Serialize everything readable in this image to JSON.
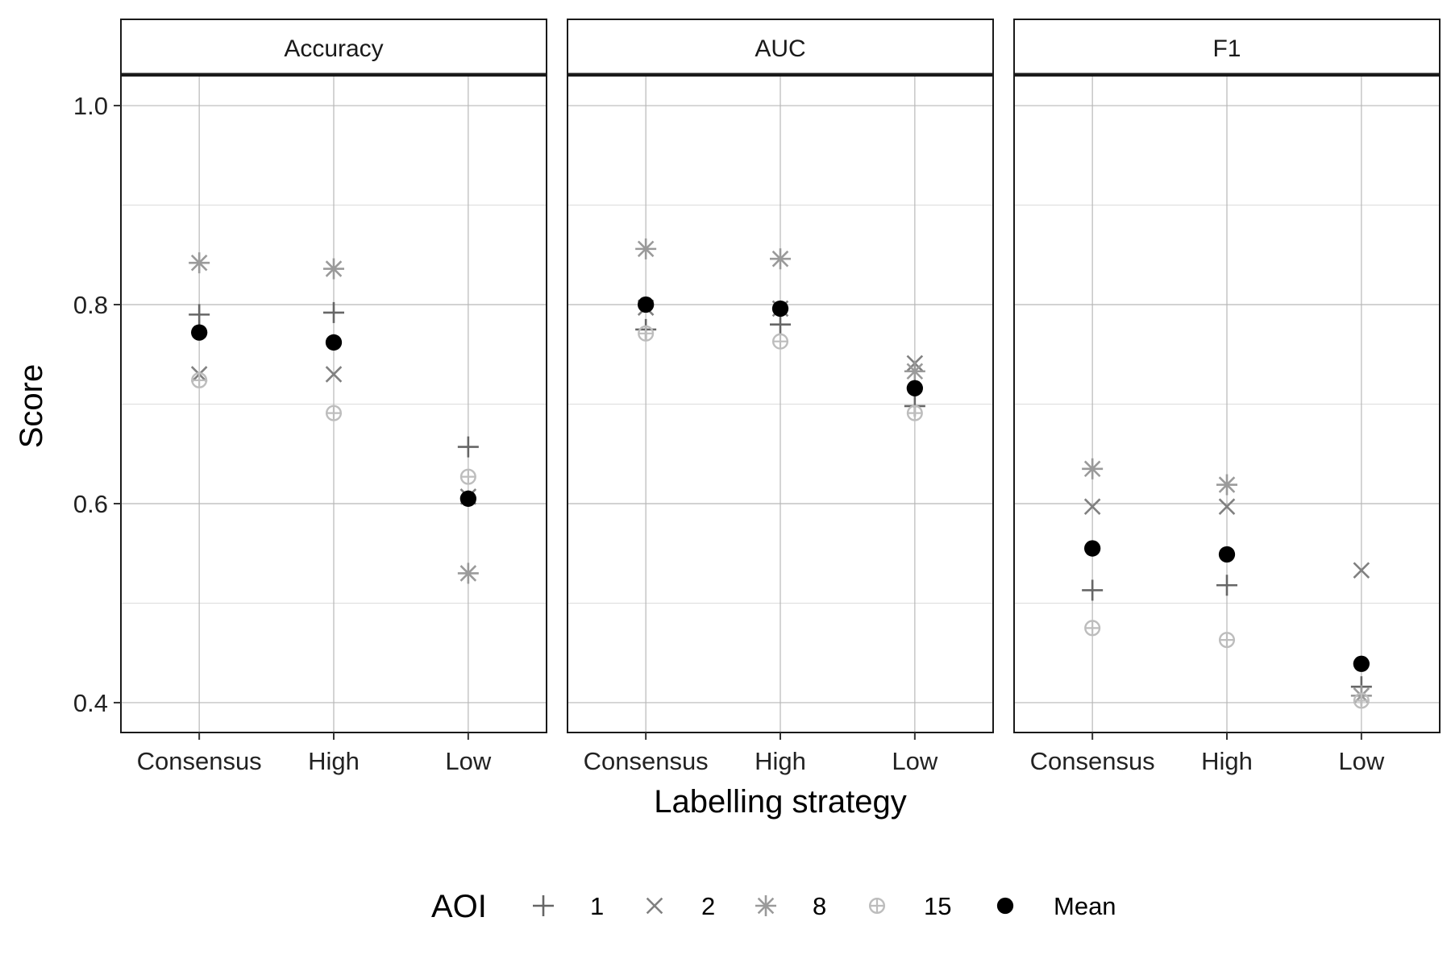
{
  "chart_data": {
    "type": "scatter",
    "facet_by": "metric",
    "panels": [
      "Accuracy",
      "AUC",
      "F1"
    ],
    "categories": [
      "Consensus",
      "High",
      "Low"
    ],
    "xlabel": "Labelling strategy",
    "ylabel": "Score",
    "ylim": [
      0.37,
      1.03
    ],
    "yticks": [
      "0.4",
      "0.6",
      "0.8",
      "1.0"
    ],
    "grid": true,
    "legend": {
      "title": "AOI",
      "position": "bottom",
      "entries": [
        "1",
        "2",
        "8",
        "15",
        "Mean"
      ]
    },
    "series": [
      {
        "name": "1",
        "marker": "plus",
        "color": "#666666",
        "values": {
          "Accuracy": [
            0.79,
            0.792,
            0.657
          ],
          "AUC": [
            0.775,
            0.78,
            0.698
          ],
          "F1": [
            0.513,
            0.518,
            0.416
          ]
        }
      },
      {
        "name": "2",
        "marker": "cross",
        "color": "#808080",
        "values": {
          "Accuracy": [
            0.73,
            0.73,
            0.607
          ],
          "AUC": [
            0.797,
            0.796,
            0.741
          ],
          "F1": [
            0.597,
            0.597,
            0.533
          ]
        }
      },
      {
        "name": "8",
        "marker": "asterisk",
        "color": "#9a9a9a",
        "values": {
          "Accuracy": [
            0.842,
            0.836,
            0.53
          ],
          "AUC": [
            0.856,
            0.846,
            0.733
          ],
          "F1": [
            0.635,
            0.619,
            0.407
          ]
        }
      },
      {
        "name": "15",
        "marker": "circle-plus",
        "color": "#bdbdbd",
        "values": {
          "Accuracy": [
            0.724,
            0.691,
            0.627
          ],
          "AUC": [
            0.771,
            0.763,
            0.691
          ],
          "F1": [
            0.475,
            0.463,
            0.402
          ]
        }
      },
      {
        "name": "Mean",
        "marker": "dot",
        "color": "#000000",
        "values": {
          "Accuracy": [
            0.772,
            0.762,
            0.605
          ],
          "AUC": [
            0.8,
            0.796,
            0.716
          ],
          "F1": [
            0.555,
            0.549,
            0.439
          ]
        }
      }
    ]
  }
}
